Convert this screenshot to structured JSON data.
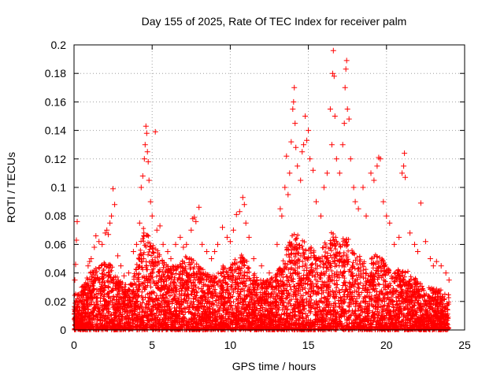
{
  "chart_data": {
    "type": "scatter",
    "title": "Day 155 of 2025, Rate Of TEC Index for receiver palm",
    "xlabel": "GPS time / hours",
    "ylabel": "ROTI / TECUs",
    "xlim": [
      0,
      25
    ],
    "ylim": [
      0,
      0.2
    ],
    "xticks": [
      0,
      5,
      10,
      15,
      20,
      25
    ],
    "yticks": [
      0,
      0.02,
      0.04,
      0.06,
      0.08,
      0.1,
      0.12,
      0.14,
      0.16,
      0.18,
      0.2
    ],
    "grid": true,
    "marker": "+",
    "color": "#ff0000",
    "series": [
      {
        "name": "ROTI",
        "points": [
          [
            0.05,
            0.035
          ],
          [
            0.1,
            0.046
          ],
          [
            0.15,
            0.063
          ],
          [
            0.2,
            0.076
          ],
          [
            0.3,
            0.02
          ],
          [
            0.5,
            0.03
          ],
          [
            0.6,
            0.025
          ],
          [
            0.8,
            0.03
          ],
          [
            0.9,
            0.045
          ],
          [
            1.0,
            0.048
          ],
          [
            1.1,
            0.05
          ],
          [
            1.3,
            0.058
          ],
          [
            1.4,
            0.066
          ],
          [
            1.6,
            0.062
          ],
          [
            1.8,
            0.06
          ],
          [
            2.0,
            0.068
          ],
          [
            2.1,
            0.07
          ],
          [
            2.2,
            0.067
          ],
          [
            2.3,
            0.075
          ],
          [
            2.4,
            0.08
          ],
          [
            2.5,
            0.099
          ],
          [
            2.6,
            0.088
          ],
          [
            2.8,
            0.052
          ],
          [
            3.0,
            0.045
          ],
          [
            3.2,
            0.038
          ],
          [
            3.5,
            0.04
          ],
          [
            3.8,
            0.055
          ],
          [
            4.0,
            0.06
          ],
          [
            4.2,
            0.075
          ],
          [
            4.3,
            0.1
          ],
          [
            4.4,
            0.108
          ],
          [
            4.5,
            0.12
          ],
          [
            4.55,
            0.13
          ],
          [
            4.6,
            0.143
          ],
          [
            4.65,
            0.138
          ],
          [
            4.7,
            0.125
          ],
          [
            4.75,
            0.118
          ],
          [
            4.8,
            0.105
          ],
          [
            4.9,
            0.09
          ],
          [
            5.0,
            0.08
          ],
          [
            5.2,
            0.139
          ],
          [
            5.3,
            0.07
          ],
          [
            5.5,
            0.073
          ],
          [
            5.7,
            0.06
          ],
          [
            6.0,
            0.055
          ],
          [
            6.2,
            0.05
          ],
          [
            6.5,
            0.06
          ],
          [
            6.8,
            0.065
          ],
          [
            7.0,
            0.058
          ],
          [
            7.2,
            0.06
          ],
          [
            7.5,
            0.07
          ],
          [
            7.6,
            0.078
          ],
          [
            7.7,
            0.079
          ],
          [
            7.8,
            0.076
          ],
          [
            8.0,
            0.086
          ],
          [
            8.2,
            0.06
          ],
          [
            8.5,
            0.055
          ],
          [
            8.8,
            0.05
          ],
          [
            9.0,
            0.055
          ],
          [
            9.2,
            0.06
          ],
          [
            9.5,
            0.072
          ],
          [
            9.8,
            0.065
          ],
          [
            10.0,
            0.062
          ],
          [
            10.2,
            0.07
          ],
          [
            10.4,
            0.081
          ],
          [
            10.6,
            0.083
          ],
          [
            10.8,
            0.093
          ],
          [
            10.9,
            0.088
          ],
          [
            11.0,
            0.075
          ],
          [
            11.2,
            0.065
          ],
          [
            11.5,
            0.05
          ],
          [
            12.0,
            0.045
          ],
          [
            12.5,
            0.04
          ],
          [
            13.0,
            0.06
          ],
          [
            13.2,
            0.085
          ],
          [
            13.3,
            0.08
          ],
          [
            13.5,
            0.1
          ],
          [
            13.6,
            0.122
          ],
          [
            13.7,
            0.095
          ],
          [
            13.8,
            0.11
          ],
          [
            13.9,
            0.132
          ],
          [
            14.0,
            0.155
          ],
          [
            14.05,
            0.16
          ],
          [
            14.1,
            0.17
          ],
          [
            14.15,
            0.145
          ],
          [
            14.2,
            0.128
          ],
          [
            14.3,
            0.115
          ],
          [
            14.5,
            0.105
          ],
          [
            14.6,
            0.125
          ],
          [
            14.7,
            0.13
          ],
          [
            14.8,
            0.15
          ],
          [
            14.9,
            0.133
          ],
          [
            15.0,
            0.14
          ],
          [
            15.1,
            0.12
          ],
          [
            15.3,
            0.112
          ],
          [
            15.5,
            0.09
          ],
          [
            15.8,
            0.08
          ],
          [
            16.0,
            0.1
          ],
          [
            16.2,
            0.11
          ],
          [
            16.4,
            0.155
          ],
          [
            16.5,
            0.13
          ],
          [
            16.55,
            0.18
          ],
          [
            16.6,
            0.196
          ],
          [
            16.65,
            0.178
          ],
          [
            16.7,
            0.15
          ],
          [
            16.8,
            0.12
          ],
          [
            17.0,
            0.11
          ],
          [
            17.2,
            0.13
          ],
          [
            17.3,
            0.145
          ],
          [
            17.35,
            0.17
          ],
          [
            17.4,
            0.183
          ],
          [
            17.45,
            0.189
          ],
          [
            17.5,
            0.155
          ],
          [
            17.6,
            0.148
          ],
          [
            17.7,
            0.12
          ],
          [
            17.9,
            0.1
          ],
          [
            18.0,
            0.09
          ],
          [
            18.2,
            0.085
          ],
          [
            18.5,
            0.1
          ],
          [
            18.7,
            0.08
          ],
          [
            19.0,
            0.11
          ],
          [
            19.2,
            0.105
          ],
          [
            19.4,
            0.115
          ],
          [
            19.5,
            0.121
          ],
          [
            19.6,
            0.12
          ],
          [
            19.8,
            0.09
          ],
          [
            20.0,
            0.08
          ],
          [
            20.2,
            0.075
          ],
          [
            20.5,
            0.06
          ],
          [
            20.8,
            0.065
          ],
          [
            21.0,
            0.11
          ],
          [
            21.1,
            0.115
          ],
          [
            21.15,
            0.124
          ],
          [
            21.2,
            0.107
          ],
          [
            21.5,
            0.068
          ],
          [
            21.8,
            0.06
          ],
          [
            22.0,
            0.055
          ],
          [
            22.2,
            0.089
          ],
          [
            22.5,
            0.062
          ],
          [
            22.8,
            0.05
          ],
          [
            23.0,
            0.045
          ],
          [
            23.2,
            0.048
          ],
          [
            23.5,
            0.045
          ],
          [
            23.8,
            0.04
          ],
          [
            24.0,
            0.035
          ]
        ],
        "envelope": [
          [
            0.0,
            0.025
          ],
          [
            0.5,
            0.03
          ],
          [
            1.0,
            0.04
          ],
          [
            1.5,
            0.045
          ],
          [
            2.0,
            0.05
          ],
          [
            2.5,
            0.045
          ],
          [
            3.0,
            0.035
          ],
          [
            3.5,
            0.03
          ],
          [
            4.0,
            0.045
          ],
          [
            4.5,
            0.075
          ],
          [
            5.0,
            0.06
          ],
          [
            5.5,
            0.055
          ],
          [
            6.0,
            0.045
          ],
          [
            6.5,
            0.045
          ],
          [
            7.0,
            0.05
          ],
          [
            7.5,
            0.055
          ],
          [
            8.0,
            0.045
          ],
          [
            8.5,
            0.04
          ],
          [
            9.0,
            0.04
          ],
          [
            9.5,
            0.045
          ],
          [
            10.0,
            0.045
          ],
          [
            10.5,
            0.055
          ],
          [
            11.0,
            0.05
          ],
          [
            11.5,
            0.04
          ],
          [
            12.0,
            0.035
          ],
          [
            12.5,
            0.035
          ],
          [
            13.0,
            0.04
          ],
          [
            13.5,
            0.055
          ],
          [
            14.0,
            0.07
          ],
          [
            14.5,
            0.065
          ],
          [
            15.0,
            0.06
          ],
          [
            15.5,
            0.055
          ],
          [
            16.0,
            0.06
          ],
          [
            16.5,
            0.07
          ],
          [
            17.0,
            0.065
          ],
          [
            17.5,
            0.065
          ],
          [
            18.0,
            0.055
          ],
          [
            18.5,
            0.05
          ],
          [
            19.0,
            0.05
          ],
          [
            19.5,
            0.055
          ],
          [
            20.0,
            0.045
          ],
          [
            20.5,
            0.04
          ],
          [
            21.0,
            0.045
          ],
          [
            21.5,
            0.04
          ],
          [
            22.0,
            0.035
          ],
          [
            22.5,
            0.03
          ],
          [
            23.0,
            0.03
          ],
          [
            23.5,
            0.028
          ],
          [
            24.0,
            0.025
          ]
        ],
        "dense_sample_count": 6000
      }
    ]
  }
}
